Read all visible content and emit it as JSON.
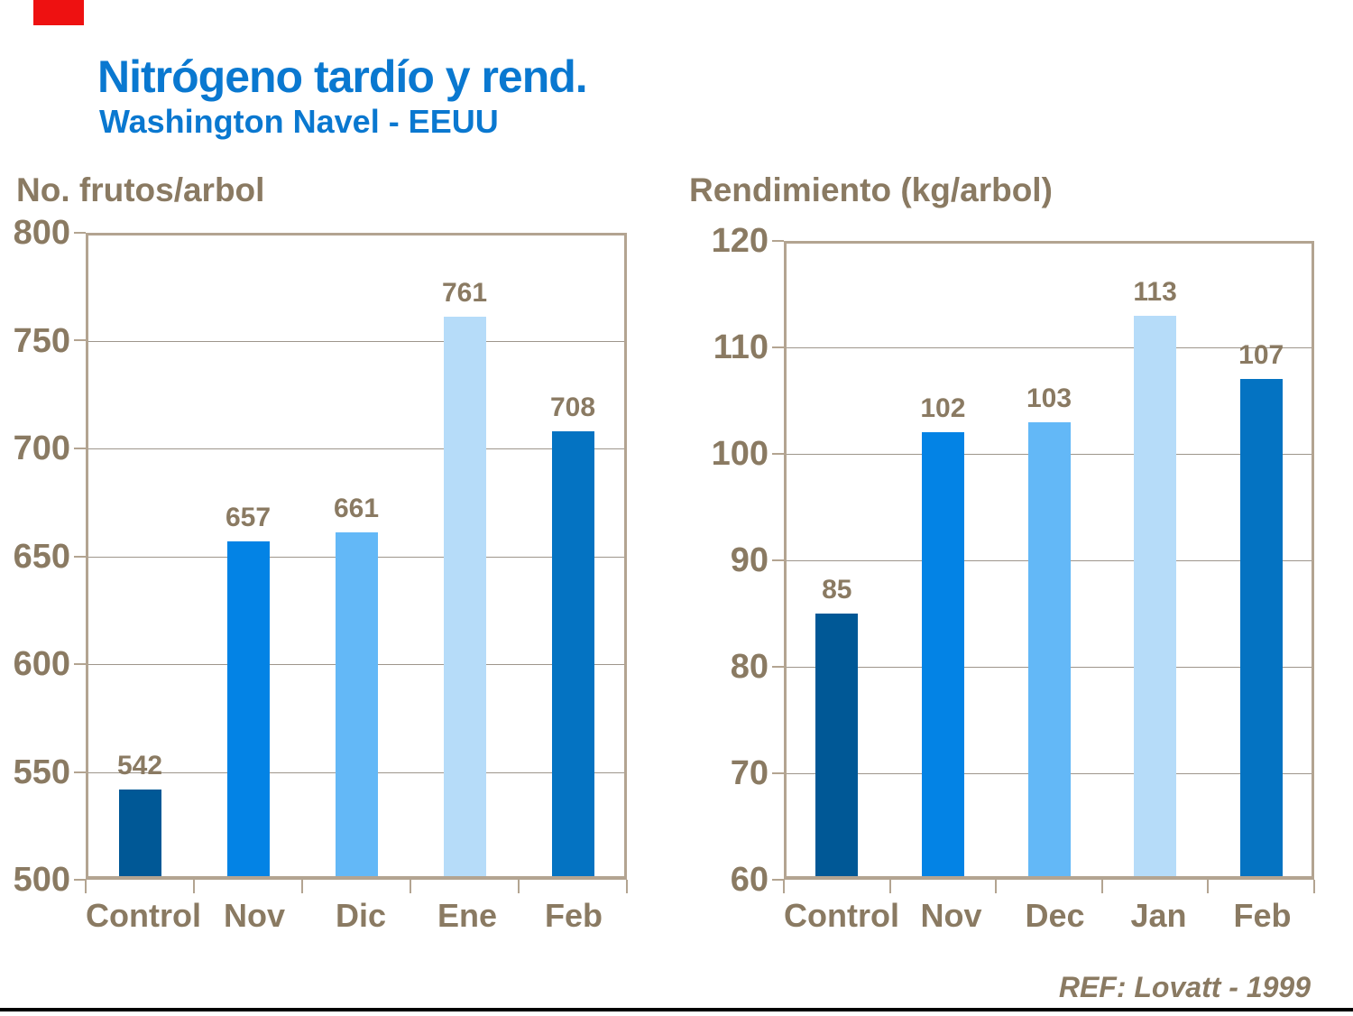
{
  "slide": {
    "title": "Nitrógeno tardío y rend.",
    "subtitle": "Washington Navel - EEUU",
    "reference": "REF: Lovatt - 1999",
    "colors": {
      "title_blue": "#0A78D0",
      "text_brown": "#8A7A62",
      "frame_tan": "#B3A491",
      "grid_gray": "#9E968C",
      "red_accent": "#EE1111",
      "bottom_rule": "#000000",
      "background": "#FFFFFF"
    }
  },
  "chart_data": [
    {
      "type": "bar",
      "title": "No. frutos/arbol",
      "categories": [
        "Control",
        "Nov",
        "Dic",
        "Ene",
        "Feb"
      ],
      "values": [
        542,
        657,
        661,
        761,
        708
      ],
      "bar_colors": [
        "#005896",
        "#0383E5",
        "#63B8F7",
        "#B6DCF9",
        "#0473C2"
      ],
      "ylim": [
        500,
        800
      ],
      "yticks": [
        800,
        750,
        700,
        650,
        600,
        550,
        500
      ],
      "grid": true,
      "legend": "none",
      "value_labels": true
    },
    {
      "type": "bar",
      "title": "Rendimiento (kg/arbol)",
      "categories": [
        "Control",
        "Nov",
        "Dec",
        "Jan",
        "Feb"
      ],
      "values": [
        85,
        102,
        103,
        113,
        107
      ],
      "bar_colors": [
        "#005896",
        "#0383E5",
        "#63B8F7",
        "#B6DCF9",
        "#0473C2"
      ],
      "ylim": [
        60,
        120
      ],
      "yticks": [
        120,
        110,
        100,
        90,
        80,
        70,
        60
      ],
      "grid": true,
      "legend": "none",
      "value_labels": true
    }
  ]
}
